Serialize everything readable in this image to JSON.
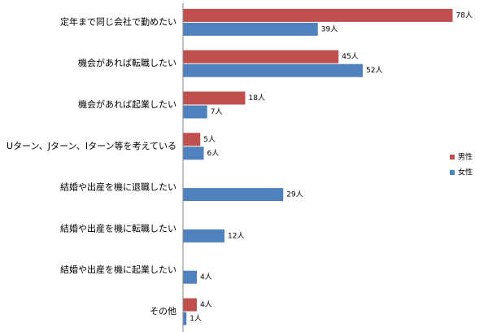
{
  "chart_data": {
    "type": "bar",
    "orientation": "horizontal",
    "categories": [
      "定年まで同じ会社で勤めたい",
      "機会があれば転職したい",
      "機会があれば起業したい",
      "Uターン、Jターン、Iターン等を考えている",
      "結婚や出産を機に退職したい",
      "結婚や出産を機に転職したい",
      "結婚や出産を機に起業したい",
      "その他"
    ],
    "series": [
      {
        "name": "男性",
        "color": "#c0504d",
        "values": [
          78,
          45,
          18,
          5,
          null,
          null,
          null,
          4
        ],
        "labels": [
          "78人",
          "45人",
          "18人",
          "5人",
          "",
          "",
          "",
          "4人"
        ]
      },
      {
        "name": "女性",
        "color": "#4f81bd",
        "values": [
          39,
          52,
          7,
          6,
          29,
          12,
          4,
          1
        ],
        "labels": [
          "39人",
          "52人",
          "7人",
          "6人",
          "29人",
          "12人",
          "4人",
          "1人"
        ]
      }
    ],
    "xlim": [
      0,
      80
    ],
    "legend_position": "right",
    "grid": false
  }
}
